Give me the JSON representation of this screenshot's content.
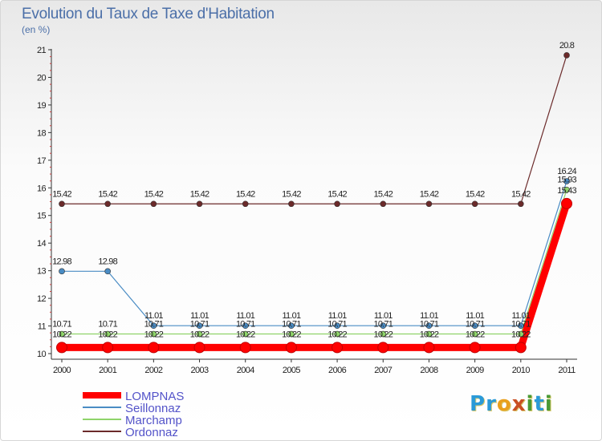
{
  "header": {
    "title": "Evolution du Taux de Taxe d'Habitation",
    "subtitle": "(en %)"
  },
  "logo": {
    "text": "Proxiti",
    "letters": [
      "P",
      "r",
      "o",
      "x",
      "i",
      "t",
      "i"
    ],
    "colors": [
      "#2a9ad8",
      "#2a9ad8",
      "#e9a01e",
      "#c94f23",
      "#4a9a35",
      "#2a9ad8",
      "#4a9a35"
    ]
  },
  "chart_data": {
    "type": "line",
    "title": "Evolution du Taux de Taxe d'Habitation",
    "subtitle": "(en %)",
    "xlabel": "",
    "ylabel": "",
    "categories": [
      "2000",
      "2001",
      "2002",
      "2003",
      "2004",
      "2005",
      "2006",
      "2007",
      "2008",
      "2009",
      "2010",
      "2011"
    ],
    "ylim": [
      10,
      21
    ],
    "yticks": [
      10,
      11,
      12,
      13,
      14,
      15,
      16,
      17,
      18,
      19,
      20,
      21
    ],
    "legend_position": "bottom-left",
    "series": [
      {
        "name": "LOMPNAS",
        "color": "#ff0000",
        "emphasis": true,
        "values": [
          10.22,
          10.22,
          10.22,
          10.22,
          10.22,
          10.22,
          10.22,
          10.22,
          10.22,
          10.22,
          10.22,
          15.43
        ],
        "labels": [
          "10.22",
          "10.22",
          "10.22",
          "10.22",
          "10.22",
          "10.22",
          "10.22",
          "10.22",
          "10.22",
          "10.22",
          "10.22",
          "15.43"
        ]
      },
      {
        "name": "Seillonnaz",
        "color": "#4a8cc4",
        "emphasis": false,
        "values": [
          12.98,
          12.98,
          11.01,
          11.01,
          11.01,
          11.01,
          11.01,
          11.01,
          11.01,
          11.01,
          11.01,
          16.24
        ],
        "labels": [
          "12.98",
          "12.98",
          "11.01",
          "11.01",
          "11.01",
          "11.01",
          "11.01",
          "11.01",
          "11.01",
          "11.01",
          "11.01",
          "16.24"
        ]
      },
      {
        "name": "Marchamp",
        "color": "#8fd46a",
        "emphasis": false,
        "values": [
          10.71,
          10.71,
          10.71,
          10.71,
          10.71,
          10.71,
          10.71,
          10.71,
          10.71,
          10.71,
          10.71,
          15.93
        ],
        "labels": [
          "10.71",
          "10.71",
          "10.71",
          "10.71",
          "10.71",
          "10.71",
          "10.71",
          "10.71",
          "10.71",
          "10.71",
          "10.71",
          "15.93"
        ]
      },
      {
        "name": "Ordonnaz",
        "color": "#6b2a2a",
        "emphasis": false,
        "values": [
          15.42,
          15.42,
          15.42,
          15.42,
          15.42,
          15.42,
          15.42,
          15.42,
          15.42,
          15.42,
          15.42,
          20.8
        ],
        "labels": [
          "15.42",
          "15.42",
          "15.42",
          "15.42",
          "15.42",
          "15.42",
          "15.42",
          "15.42",
          "15.42",
          "15.42",
          "15.42",
          "20.8"
        ]
      }
    ]
  }
}
